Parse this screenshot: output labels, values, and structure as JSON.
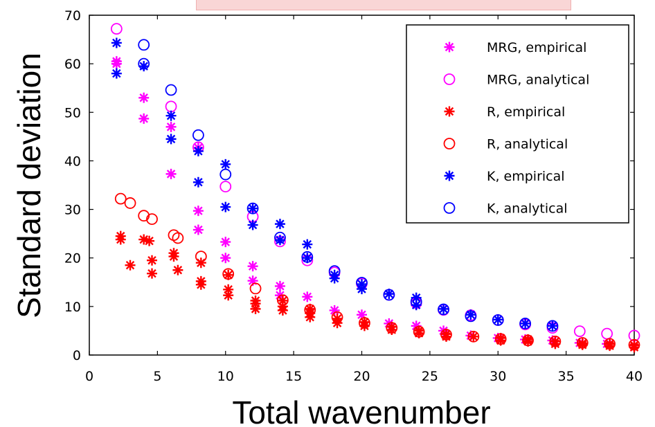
{
  "chart_data": {
    "type": "scatter",
    "title": "",
    "xlabel": "Total wavenumber",
    "ylabel": "Standard deviation",
    "xlim": [
      0,
      40
    ],
    "ylim": [
      0,
      70
    ],
    "xticks": [
      0,
      5,
      10,
      15,
      20,
      25,
      30,
      35,
      40
    ],
    "yticks": [
      0,
      10,
      20,
      30,
      40,
      50,
      60,
      70
    ],
    "grid": false,
    "legend_position": "top-right",
    "series": [
      {
        "name": "MRG, empirical",
        "marker": "star",
        "color": "#ff00ff",
        "points": [
          [
            2,
            60
          ],
          [
            2,
            60.5
          ],
          [
            4,
            53
          ],
          [
            4,
            48.7
          ],
          [
            6,
            47
          ],
          [
            6,
            37.3
          ],
          [
            8,
            42.7
          ],
          [
            8,
            29.7
          ],
          [
            8,
            25.8
          ],
          [
            10,
            23.3
          ],
          [
            10,
            20
          ],
          [
            12,
            18.3
          ],
          [
            12,
            15.3
          ],
          [
            14,
            14.2
          ],
          [
            14,
            12.3
          ],
          [
            16,
            12
          ],
          [
            18,
            9.2
          ],
          [
            20,
            8.3
          ],
          [
            22,
            6.5
          ],
          [
            24,
            6
          ],
          [
            26,
            5
          ],
          [
            28,
            4
          ],
          [
            30,
            3.5
          ],
          [
            32,
            3.2
          ],
          [
            34,
            3
          ],
          [
            36,
            2.5
          ],
          [
            38,
            2.3
          ],
          [
            40,
            2
          ]
        ]
      },
      {
        "name": "MRG, analytical",
        "marker": "circle",
        "color": "#ff00ff",
        "points": [
          [
            2,
            67.2
          ],
          [
            6,
            51.2
          ],
          [
            8,
            42.8
          ],
          [
            10,
            34.7
          ],
          [
            12,
            28.5
          ],
          [
            14,
            23.4
          ],
          [
            16,
            19.5
          ],
          [
            18,
            17
          ],
          [
            20,
            14.7
          ],
          [
            22,
            12.4
          ],
          [
            24,
            10.7
          ],
          [
            26,
            9.3
          ],
          [
            28,
            8.2
          ],
          [
            30,
            7.2
          ],
          [
            32,
            6.3
          ],
          [
            34,
            5.6
          ],
          [
            36,
            4.9
          ],
          [
            38,
            4.4
          ],
          [
            40,
            4
          ]
        ]
      },
      {
        "name": "R, empirical",
        "marker": "star",
        "color": "#ff0000",
        "points": [
          [
            2.3,
            24.5
          ],
          [
            2.3,
            23.8
          ],
          [
            3,
            18.5
          ],
          [
            4,
            23.8
          ],
          [
            4.4,
            23.5
          ],
          [
            4.6,
            19.5
          ],
          [
            4.6,
            16.8
          ],
          [
            6.2,
            21
          ],
          [
            6.2,
            20.3
          ],
          [
            6.5,
            17.5
          ],
          [
            8.2,
            19
          ],
          [
            8.2,
            15.2
          ],
          [
            8.2,
            14.5
          ],
          [
            10.2,
            16.5
          ],
          [
            10.2,
            13.5
          ],
          [
            10.2,
            12.3
          ],
          [
            12.2,
            11.2
          ],
          [
            12.2,
            10.6
          ],
          [
            12.2,
            9.5
          ],
          [
            14.2,
            11.2
          ],
          [
            14.2,
            10
          ],
          [
            14.2,
            9.2
          ],
          [
            16.2,
            9.5
          ],
          [
            16.2,
            8.6
          ],
          [
            16.2,
            7.8
          ],
          [
            18.2,
            7.5
          ],
          [
            18.2,
            6.6
          ],
          [
            20.2,
            6.8
          ],
          [
            20.2,
            6
          ],
          [
            22.2,
            5.8
          ],
          [
            22.2,
            5.2
          ],
          [
            24.2,
            5
          ],
          [
            24.2,
            4.5
          ],
          [
            26.2,
            4.3
          ],
          [
            26.2,
            3.8
          ],
          [
            28.2,
            3.8
          ],
          [
            30.2,
            3.5
          ],
          [
            30.2,
            3
          ],
          [
            32.2,
            3.2
          ],
          [
            32.2,
            2.8
          ],
          [
            34.2,
            2.8
          ],
          [
            34.2,
            2.3
          ],
          [
            36.2,
            2.4
          ],
          [
            36.2,
            2.1
          ],
          [
            38.2,
            2.3
          ],
          [
            38.2,
            1.9
          ],
          [
            40,
            2
          ],
          [
            40,
            1.6
          ]
        ]
      },
      {
        "name": "R, analytical",
        "marker": "circle",
        "color": "#ff0000",
        "points": [
          [
            2.3,
            32.2
          ],
          [
            3,
            31.3
          ],
          [
            4,
            28.7
          ],
          [
            4.6,
            28
          ],
          [
            6.2,
            24.7
          ],
          [
            6.5,
            24.1
          ],
          [
            8.2,
            20.3
          ],
          [
            10.2,
            16.7
          ],
          [
            12.2,
            13.7
          ],
          [
            14.2,
            11.3
          ],
          [
            16.2,
            9.3
          ],
          [
            18.2,
            7.8
          ],
          [
            20.2,
            6.6
          ],
          [
            22.2,
            5.6
          ],
          [
            24.2,
            4.8
          ],
          [
            26.2,
            4.2
          ],
          [
            28.2,
            3.8
          ],
          [
            30.2,
            3.3
          ],
          [
            32.2,
            3
          ],
          [
            34.2,
            2.8
          ],
          [
            36.2,
            2.5
          ],
          [
            38.2,
            2.3
          ],
          [
            40,
            2.1
          ]
        ]
      },
      {
        "name": "K, empirical",
        "marker": "star",
        "color": "#0000ff",
        "points": [
          [
            2,
            64.3
          ],
          [
            2,
            58
          ],
          [
            4,
            59.5
          ],
          [
            6,
            49.3
          ],
          [
            6,
            44.5
          ],
          [
            8,
            42
          ],
          [
            8,
            35.6
          ],
          [
            10,
            39.3
          ],
          [
            10,
            30.5
          ],
          [
            12,
            30.2
          ],
          [
            12,
            26.8
          ],
          [
            14,
            27
          ],
          [
            14,
            23.7
          ],
          [
            16,
            22.8
          ],
          [
            16,
            20
          ],
          [
            18,
            16.5
          ],
          [
            18,
            15.8
          ],
          [
            20,
            14.6
          ],
          [
            20,
            13.6
          ],
          [
            22,
            12.6
          ],
          [
            24,
            11.8
          ],
          [
            24,
            10.3
          ],
          [
            26,
            9.5
          ],
          [
            28,
            8.3
          ],
          [
            30,
            7.3
          ],
          [
            32,
            6.5
          ],
          [
            34,
            6
          ]
        ]
      },
      {
        "name": "K, analytical",
        "marker": "circle",
        "color": "#0000ff",
        "points": [
          [
            4,
            63.9
          ],
          [
            4,
            60
          ],
          [
            6,
            54.6
          ],
          [
            8,
            45.3
          ],
          [
            10,
            37.2
          ],
          [
            12,
            30.2
          ],
          [
            14,
            24.2
          ],
          [
            16,
            20.2
          ],
          [
            18,
            17.3
          ],
          [
            20,
            14.9
          ],
          [
            22,
            12.4
          ],
          [
            24,
            11
          ],
          [
            26,
            9.4
          ],
          [
            28,
            8
          ],
          [
            30,
            7.2
          ],
          [
            32,
            6.5
          ],
          [
            34,
            6
          ]
        ]
      }
    ]
  }
}
